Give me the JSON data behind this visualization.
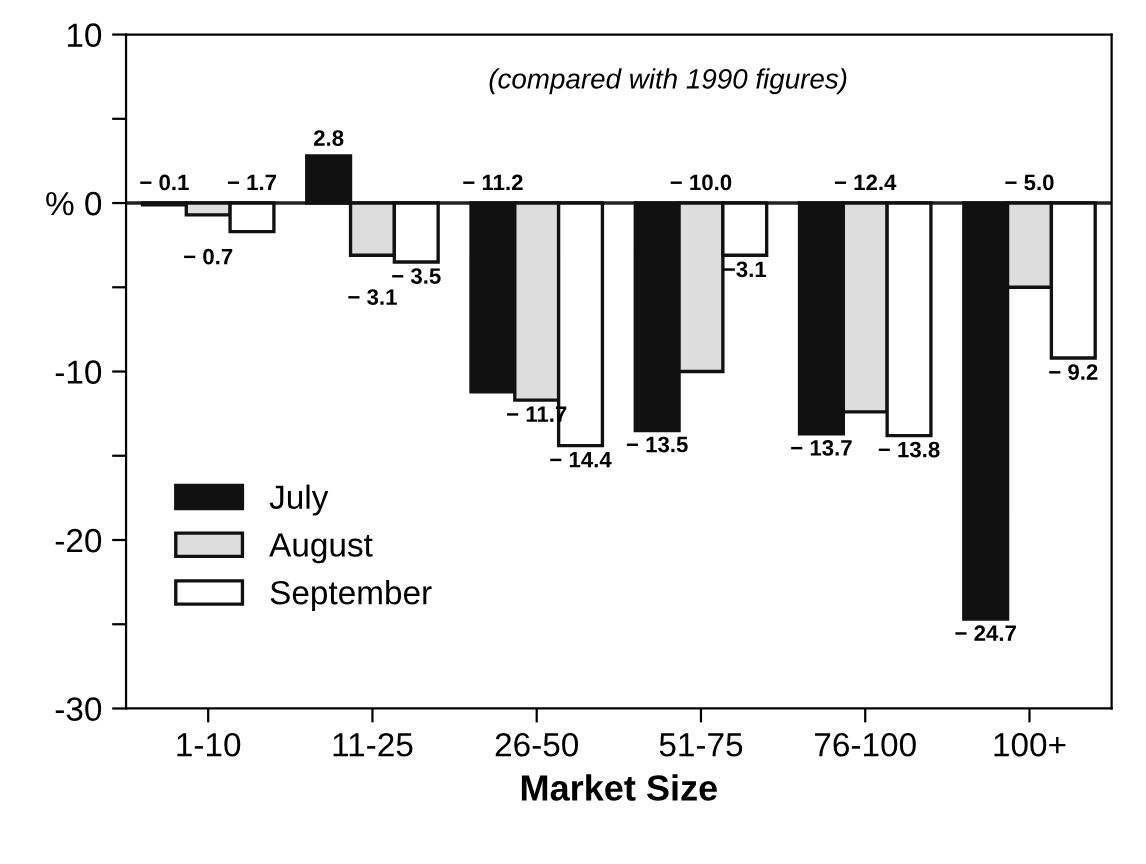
{
  "chart_data": {
    "type": "bar",
    "xlabel": "Market Size",
    "categories": [
      "1-10",
      "11-25",
      "26-50",
      "51-75",
      "76-100",
      "100+"
    ],
    "series": [
      {
        "name": "July",
        "color": "#111111",
        "values": [
          -0.1,
          2.8,
          -11.2,
          -13.5,
          -13.7,
          -24.7
        ],
        "value_labels": [
          "− 0.1",
          "2.8",
          "− 11.2",
          "− 13.5",
          "− 13.7",
          "− 24.7"
        ]
      },
      {
        "name": "August",
        "color": "#dddddd",
        "values": [
          -0.7,
          -3.1,
          -11.7,
          -10.0,
          -12.4,
          -5.0
        ],
        "value_labels": [
          "− 0.7",
          "− 3.1",
          "− 11.7",
          "− 10.0",
          "− 12.4",
          "− 5.0"
        ]
      },
      {
        "name": "September",
        "color": "#ffffff",
        "values": [
          -1.7,
          -3.5,
          -14.4,
          -3.1,
          -13.8,
          -9.2
        ],
        "value_labels": [
          "− 1.7",
          "− 3.5",
          "− 14.4",
          "−3.1",
          "− 13.8",
          "− 9.2"
        ]
      }
    ],
    "ylim": [
      -30,
      10
    ],
    "yticks": [
      {
        "value": -30,
        "label": "-30"
      },
      {
        "value": -25,
        "label": null
      },
      {
        "value": -20,
        "label": "-20"
      },
      {
        "value": -15,
        "label": null
      },
      {
        "value": -10,
        "label": "-10"
      },
      {
        "value": -5,
        "label": null
      },
      {
        "value": 0,
        "label": "% 0"
      },
      {
        "value": 5,
        "label": null
      },
      10
    ],
    "ref_lines": [
      {
        "axis": "y",
        "value": 0,
        "color": "#222222",
        "line_style": "solid"
      }
    ],
    "annotations": [
      "(compared with 1990 figures)"
    ],
    "legend": "bottom left",
    "grid": false
  }
}
